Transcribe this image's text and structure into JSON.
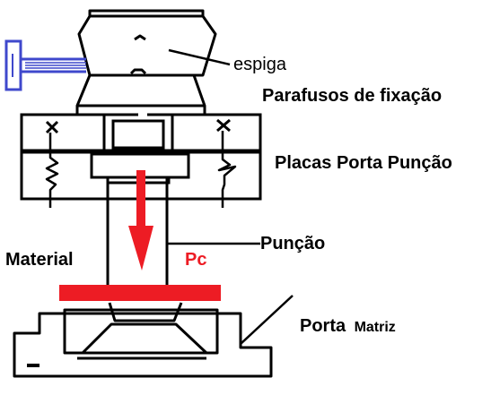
{
  "labels": {
    "espiga": "espiga",
    "parafusos": "Parafusos de fixação",
    "placas": "Placas Porta Punção",
    "puncao": "Punção",
    "material": "Material",
    "pc": "Pc",
    "porta_prefix": "Porta",
    "porta_suffix": "Matriz"
  },
  "colors": {
    "line": "#000000",
    "force_arrow": "#ed1c24",
    "material_strip": "#ed1c24",
    "bolt": "#3f48cc",
    "pc_label": "#ed1c24"
  },
  "icons": {
    "force_arrow": "down-arrow-icon",
    "bolt": "bolt-icon",
    "screw_cross": "cross-icon",
    "spring": "spring-icon"
  }
}
